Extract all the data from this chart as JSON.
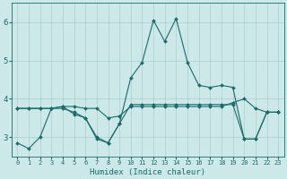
{
  "xlabel": "Humidex (Indice chaleur)",
  "xlim": [
    -0.5,
    23.5
  ],
  "ylim": [
    2.5,
    6.5
  ],
  "yticks": [
    3,
    4,
    5,
    6
  ],
  "xticks": [
    0,
    1,
    2,
    3,
    4,
    5,
    6,
    7,
    8,
    9,
    10,
    11,
    12,
    13,
    14,
    15,
    16,
    17,
    18,
    19,
    20,
    21,
    22,
    23
  ],
  "bg_color": "#cce8e8",
  "line_color": "#1a6b6b",
  "grid_color": "#aacfcf",
  "lines": [
    {
      "x": [
        0,
        1,
        2,
        3,
        4,
        5,
        6,
        7,
        8,
        9,
        10,
        11,
        12,
        13,
        14,
        15,
        16,
        17,
        18,
        19,
        20,
        21,
        22,
        23
      ],
      "y": [
        2.85,
        2.7,
        3.0,
        3.75,
        3.8,
        3.6,
        3.5,
        3.0,
        2.85,
        3.35,
        4.55,
        4.95,
        6.05,
        5.5,
        6.1,
        4.95,
        4.35,
        4.3,
        4.35,
        4.3,
        2.95,
        2.95,
        3.65,
        3.65
      ]
    },
    {
      "x": [
        0,
        1,
        2,
        3,
        4,
        5,
        6,
        7,
        8,
        9,
        10,
        11,
        12,
        13,
        14,
        15,
        16,
        17,
        18,
        19,
        20,
        21,
        22,
        23
      ],
      "y": [
        3.75,
        3.75,
        3.75,
        3.75,
        3.8,
        3.8,
        3.75,
        3.75,
        3.5,
        3.55,
        3.8,
        3.8,
        3.8,
        3.8,
        3.8,
        3.8,
        3.8,
        3.8,
        3.8,
        3.9,
        4.0,
        3.75,
        3.65,
        3.65
      ]
    },
    {
      "x": [
        0,
        1,
        2,
        3,
        4,
        5,
        6,
        7,
        8,
        9,
        10,
        11,
        12,
        13,
        14,
        15,
        16,
        17,
        18,
        19,
        20,
        21,
        22,
        23
      ],
      "y": [
        3.75,
        3.75,
        3.75,
        3.75,
        3.75,
        3.65,
        3.5,
        2.95,
        2.85,
        3.35,
        3.85,
        3.85,
        3.85,
        3.85,
        3.85,
        3.85,
        3.85,
        3.85,
        3.85,
        3.85,
        2.95,
        2.95,
        3.65,
        3.65
      ]
    }
  ],
  "xlabel_fontsize": 6.5,
  "ylabel_fontsize": 6.5,
  "xtick_fontsize": 5.0,
  "ytick_fontsize": 6.5,
  "linewidth": 0.8,
  "markersize": 2.0
}
